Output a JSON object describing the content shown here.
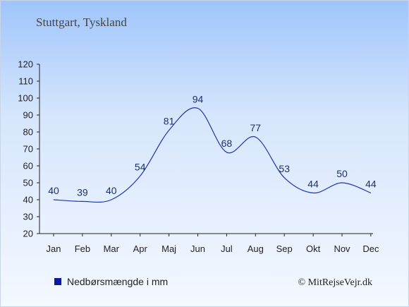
{
  "header": {
    "title": "Stuttgart, Tyskland"
  },
  "legend": {
    "label": "Nedbørsmængde i mm",
    "color": "#0a1aa0"
  },
  "footer": {
    "credit": "© MitRejseVejr.dk"
  },
  "colors": {
    "line": "#1f35b0",
    "label": "#1b2f6b"
  },
  "chart_data": {
    "type": "line",
    "title": "Stuttgart, Tyskland",
    "xlabel": "",
    "ylabel": "",
    "categories": [
      "Jan",
      "Feb",
      "Mar",
      "Apr",
      "Maj",
      "Jun",
      "Jul",
      "Aug",
      "Sep",
      "Okt",
      "Nov",
      "Dec"
    ],
    "series": [
      {
        "name": "Nedbørsmængde i mm",
        "values": [
          40,
          39,
          40,
          54,
          81,
          94,
          68,
          77,
          53,
          44,
          50,
          44
        ]
      }
    ],
    "ylim": [
      20,
      120
    ],
    "yticks": [
      20,
      30,
      40,
      50,
      60,
      70,
      80,
      90,
      100,
      110,
      120
    ],
    "grid": false,
    "legend_position": "bottom-left"
  }
}
